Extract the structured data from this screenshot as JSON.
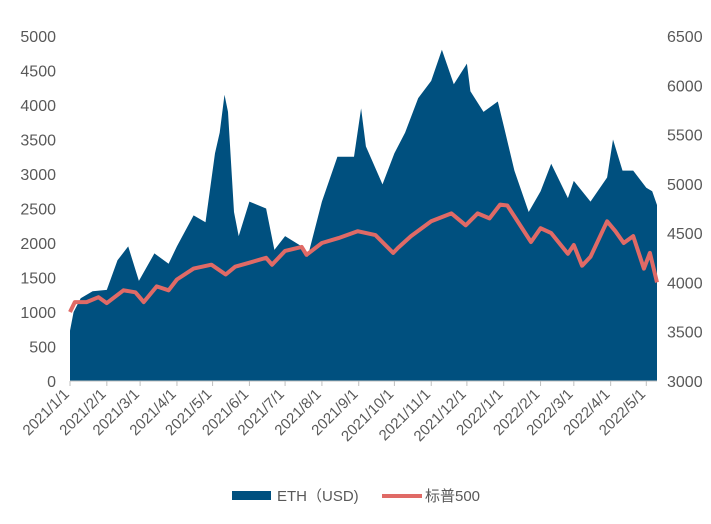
{
  "chart_data": {
    "type": "area",
    "x_start": "2021-01-01",
    "x_end": "2022-05-10",
    "x_tick_labels": [
      "2021/1/1",
      "2021/2/1",
      "2021/3/1",
      "2021/4/1",
      "2021/5/1",
      "2021/6/1",
      "2021/7/1",
      "2021/8/1",
      "2021/9/1",
      "2021/10/1",
      "2021/11/1",
      "2021/12/1",
      "2022/1/1",
      "2022/2/1",
      "2022/3/1",
      "2022/4/1",
      "2022/5/1"
    ],
    "y_left": {
      "ticks": [
        0,
        500,
        1000,
        1500,
        2000,
        2500,
        3000,
        3500,
        4000,
        4500,
        5000
      ],
      "ylim": [
        0,
        5000
      ]
    },
    "y_right": {
      "ticks": [
        3000,
        3500,
        4000,
        4500,
        5000,
        5500,
        6000,
        6500
      ],
      "ylim": [
        3000,
        6500
      ]
    },
    "series": [
      {
        "name": "ETH（USD)",
        "axis": "left",
        "chart_type": "area",
        "color": "#00507F",
        "x": [
          "2021-01-01",
          "2021-01-04",
          "2021-01-10",
          "2021-01-20",
          "2021-02-01",
          "2021-02-10",
          "2021-02-19",
          "2021-02-28",
          "2021-03-13",
          "2021-03-25",
          "2021-04-01",
          "2021-04-15",
          "2021-04-25",
          "2021-05-03",
          "2021-05-07",
          "2021-05-11",
          "2021-05-14",
          "2021-05-19",
          "2021-05-23",
          "2021-06-01",
          "2021-06-15",
          "2021-06-22",
          "2021-07-01",
          "2021-07-15",
          "2021-07-20",
          "2021-08-01",
          "2021-08-14",
          "2021-08-28",
          "2021-09-03",
          "2021-09-07",
          "2021-09-21",
          "2021-10-01",
          "2021-10-10",
          "2021-10-21",
          "2021-11-01",
          "2021-11-10",
          "2021-11-20",
          "2021-12-01",
          "2021-12-04",
          "2021-12-15",
          "2021-12-27",
          "2022-01-01",
          "2022-01-10",
          "2022-01-22",
          "2022-02-01",
          "2022-02-10",
          "2022-02-24",
          "2022-03-01",
          "2022-03-15",
          "2022-03-29",
          "2022-04-03",
          "2022-04-11",
          "2022-04-20",
          "2022-05-01",
          "2022-05-06",
          "2022-05-10"
        ],
        "values": [
          730,
          1000,
          1200,
          1300,
          1320,
          1750,
          1950,
          1450,
          1850,
          1700,
          1950,
          2400,
          2300,
          3300,
          3600,
          4150,
          3900,
          2450,
          2100,
          2600,
          2500,
          1900,
          2100,
          1950,
          1800,
          2600,
          3250,
          3250,
          3950,
          3400,
          2850,
          3300,
          3600,
          4100,
          4350,
          4800,
          4300,
          4600,
          4200,
          3900,
          4050,
          3700,
          3050,
          2450,
          2750,
          3150,
          2650,
          2900,
          2600,
          2950,
          3500,
          3050,
          3050,
          2800,
          2750,
          2550
        ]
      },
      {
        "name": "标普500",
        "axis": "right",
        "chart_type": "line",
        "color": "#E06A66",
        "x": [
          "2021-01-01",
          "2021-01-05",
          "2021-01-15",
          "2021-01-25",
          "2021-02-01",
          "2021-02-15",
          "2021-02-25",
          "2021-03-04",
          "2021-03-15",
          "2021-03-25",
          "2021-04-01",
          "2021-04-15",
          "2021-04-30",
          "2021-05-12",
          "2021-05-20",
          "2021-06-01",
          "2021-06-15",
          "2021-06-20",
          "2021-07-01",
          "2021-07-15",
          "2021-07-19",
          "2021-08-01",
          "2021-08-15",
          "2021-08-31",
          "2021-09-15",
          "2021-09-30",
          "2021-10-04",
          "2021-10-15",
          "2021-11-01",
          "2021-11-18",
          "2021-11-30",
          "2021-12-10",
          "2021-12-20",
          "2021-12-29",
          "2022-01-04",
          "2022-01-10",
          "2022-01-24",
          "2022-02-01",
          "2022-02-10",
          "2022-02-24",
          "2022-03-01",
          "2022-03-08",
          "2022-03-15",
          "2022-03-29",
          "2022-04-05",
          "2022-04-12",
          "2022-04-20",
          "2022-04-29",
          "2022-05-04",
          "2022-05-10"
        ],
        "values": [
          3700,
          3800,
          3800,
          3850,
          3790,
          3920,
          3900,
          3800,
          3960,
          3920,
          4030,
          4140,
          4180,
          4080,
          4160,
          4200,
          4250,
          4180,
          4320,
          4360,
          4280,
          4400,
          4450,
          4520,
          4480,
          4300,
          4350,
          4470,
          4620,
          4700,
          4580,
          4700,
          4650,
          4790,
          4780,
          4670,
          4410,
          4550,
          4500,
          4290,
          4380,
          4170,
          4260,
          4620,
          4520,
          4400,
          4470,
          4140,
          4300,
          4000
        ]
      }
    ],
    "legend_position": "bottom"
  }
}
